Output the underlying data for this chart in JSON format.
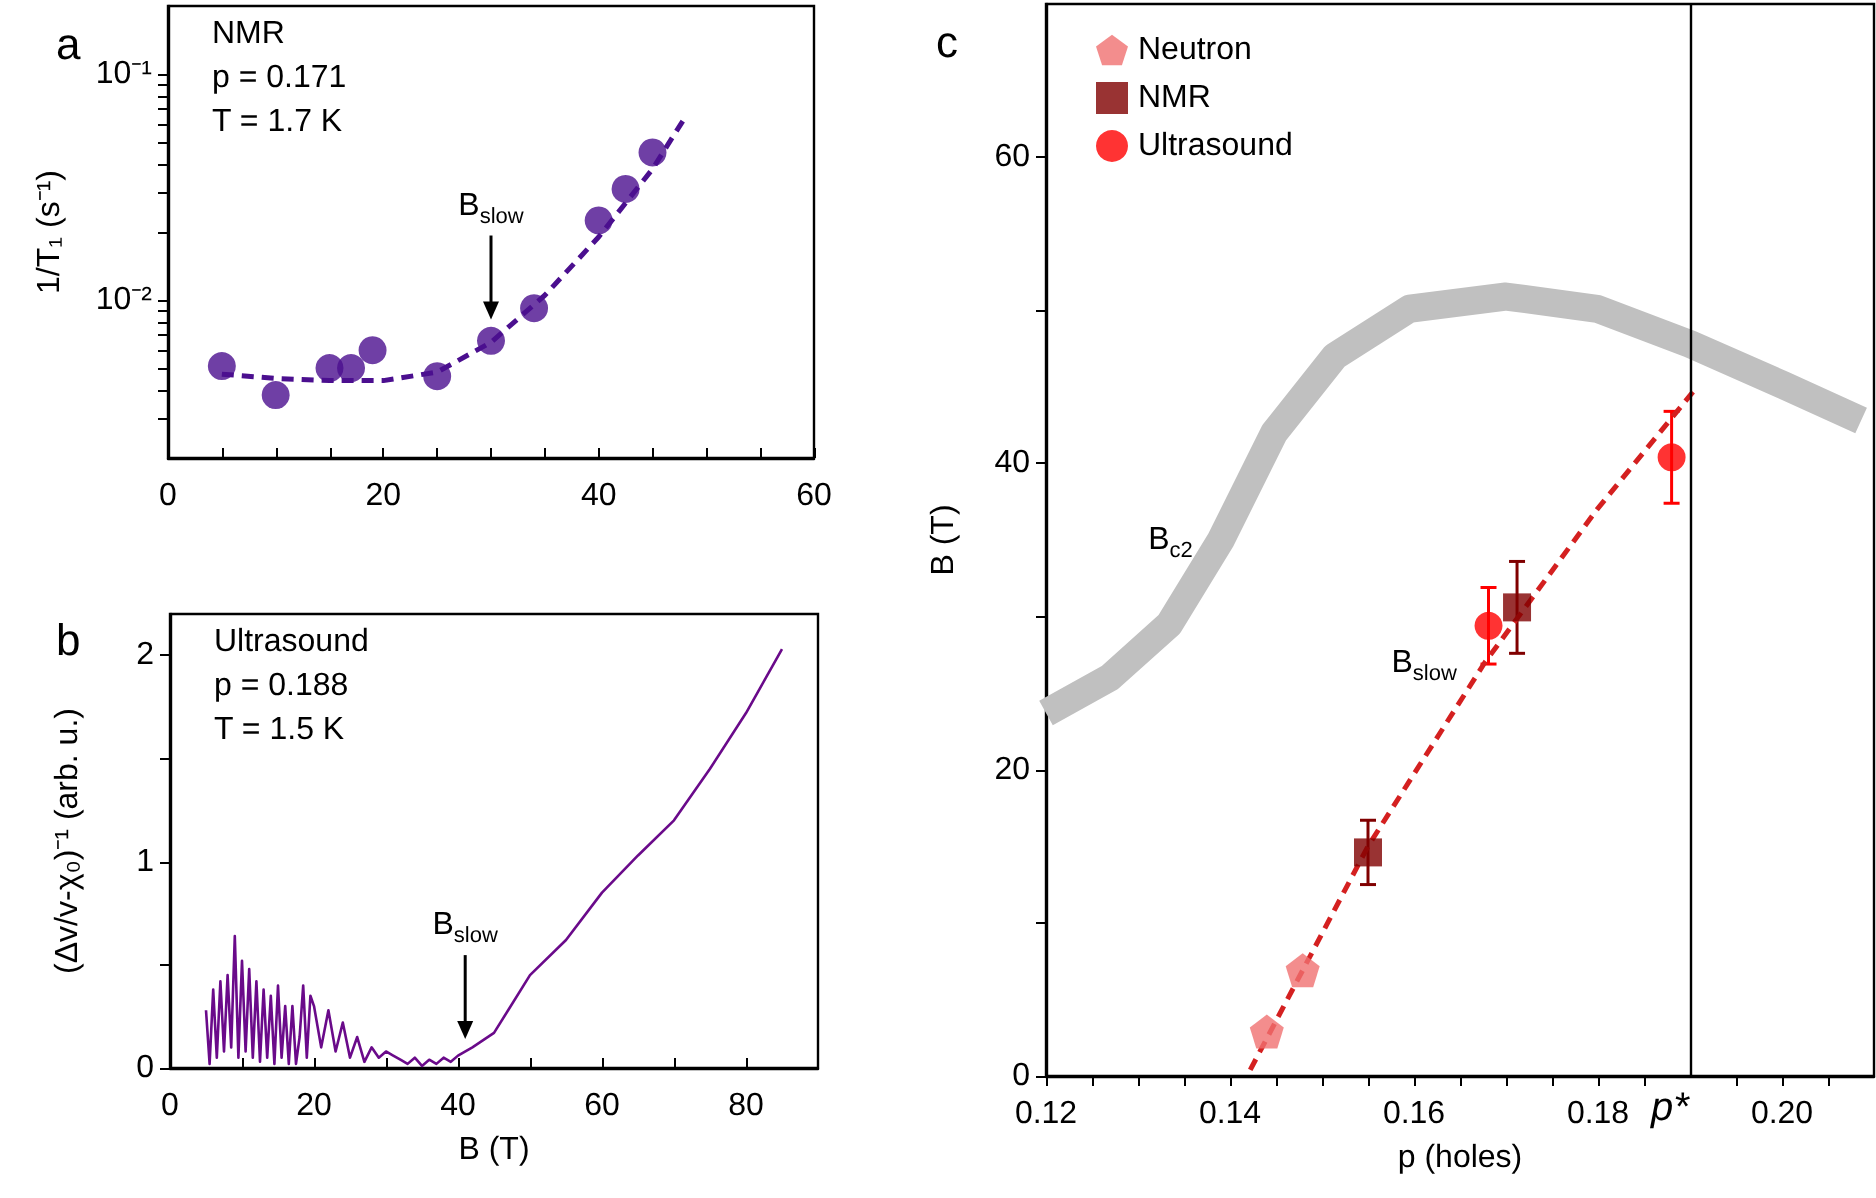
{
  "chart_data": [
    {
      "type": "scatter",
      "ylabel": "1/T₁ (s⁻¹)",
      "log": "y",
      "xlim": [
        0,
        60
      ],
      "ylim": [
        0.002,
        0.2
      ],
      "xticks": [
        0,
        {
          "value": 5,
          "label": null
        },
        {
          "value": 10,
          "label": null
        },
        {
          "value": 15,
          "label": null
        },
        20,
        {
          "value": 25,
          "label": null
        },
        {
          "value": 30,
          "label": null
        },
        {
          "value": 35,
          "label": null
        },
        40,
        {
          "value": 45,
          "label": null
        },
        {
          "value": 50,
          "label": null
        },
        {
          "value": 55,
          "label": null
        },
        60
      ],
      "yticks": [
        {
          "value": 0.003,
          "label": null
        },
        {
          "value": 0.004,
          "label": null
        },
        {
          "value": 0.005,
          "label": null
        },
        {
          "value": 0.006,
          "label": null
        },
        {
          "value": 0.007,
          "label": null
        },
        {
          "value": 0.008,
          "label": null
        },
        {
          "value": 0.009,
          "label": null
        },
        {
          "value": 0.01,
          "label": "10⁻²"
        },
        {
          "value": 0.02,
          "label": null
        },
        {
          "value": 0.03,
          "label": null
        },
        {
          "value": 0.04,
          "label": null
        },
        {
          "value": 0.05,
          "label": null
        },
        {
          "value": 0.06,
          "label": null
        },
        {
          "value": 0.07,
          "label": null
        },
        {
          "value": 0.08,
          "label": null
        },
        {
          "value": 0.09,
          "label": null
        },
        {
          "value": 0.1,
          "label": "10⁻¹"
        }
      ],
      "x": [
        5,
        10,
        15,
        17,
        19,
        25,
        30,
        34,
        40,
        42.5,
        45
      ],
      "series": [
        {
          "values": [
            0.0051,
            0.0038,
            0.005,
            0.005,
            0.006,
            0.0046,
            0.0066,
            0.0092,
            0.0225,
            0.031,
            0.045
          ],
          "color": "#4b0f8f",
          "marker": "circle"
        },
        {
          "type": "line",
          "x": [
            5,
            10,
            15,
            20,
            25,
            30,
            35,
            40,
            45,
            48
          ],
          "values": [
            0.0047,
            0.0045,
            0.0044,
            0.0044,
            0.0048,
            0.0065,
            0.0105,
            0.019,
            0.038,
            0.064
          ],
          "color": "#4b0f8f",
          "line_style": "dashed",
          "marker": "none"
        }
      ],
      "annotations": [
        "a",
        "NMR",
        "p = 0.171",
        "T = 1.7 K",
        {
          "text": "B$_{slow}$",
          "x": 30,
          "y": 0.0082
        }
      ]
    },
    {
      "type": "line",
      "xlabel": "B (T)",
      "ylabel": "(Δv/v-χ₀)⁻¹ (arb. u.)",
      "xlim": [
        0,
        90
      ],
      "ylim": [
        0,
        2.2
      ],
      "xticks": [
        0,
        {
          "value": 10,
          "label": null
        },
        20,
        {
          "value": 30,
          "label": null
        },
        40,
        {
          "value": 50,
          "label": null
        },
        60,
        {
          "value": 70,
          "label": null
        },
        80
      ],
      "yticks": [
        0,
        {
          "value": 0.5,
          "label": null
        },
        1,
        {
          "value": 1.5,
          "label": null
        },
        2
      ],
      "x": [
        5,
        5.5,
        6,
        6.5,
        7,
        7.5,
        8,
        8.5,
        9,
        9.5,
        10,
        10.5,
        11,
        11.5,
        12,
        12.5,
        13,
        13.5,
        14,
        14.5,
        15,
        15.5,
        16,
        16.5,
        17,
        17.5,
        18,
        18.5,
        19,
        19.5,
        20,
        21,
        22,
        23,
        24,
        25,
        26,
        27,
        28,
        29,
        30,
        31,
        32,
        33,
        34,
        35,
        36,
        37,
        38,
        39,
        40,
        42,
        45,
        50,
        55,
        60,
        65,
        70,
        75,
        80,
        85
      ],
      "series": [
        {
          "values": [
            0.28,
            0.02,
            0.38,
            0.05,
            0.42,
            0.08,
            0.45,
            0.1,
            0.64,
            0.05,
            0.52,
            0.08,
            0.48,
            0.05,
            0.42,
            0.03,
            0.38,
            0.05,
            0.35,
            0.02,
            0.4,
            0.05,
            0.3,
            0.02,
            0.3,
            0.02,
            0.15,
            0.4,
            0.05,
            0.35,
            0.3,
            0.1,
            0.28,
            0.08,
            0.22,
            0.05,
            0.15,
            0.03,
            0.1,
            0.05,
            0.08,
            0.06,
            0.04,
            0.02,
            0.05,
            0.01,
            0.04,
            0.02,
            0.05,
            0.03,
            0.06,
            0.1,
            0.17,
            0.45,
            0.62,
            0.85,
            1.03,
            1.2,
            1.45,
            1.72,
            2.03
          ],
          "color": "#6a0a8a"
        }
      ],
      "annotations": [
        "b",
        "Ultrasound",
        "p = 0.188",
        "T = 1.5 K",
        {
          "text": "B$_{slow}$",
          "x": 41,
          "y": 0.14
        }
      ]
    },
    {
      "type": "scatter",
      "xlabel": "p (holes)",
      "ylabel": "B (T)",
      "xlim": [
        0.12,
        0.21
      ],
      "ylim": [
        0,
        70
      ],
      "legend": "top left",
      "xticks": [
        0.12,
        {
          "value": 0.125,
          "label": null
        },
        {
          "value": 0.13,
          "label": null
        },
        {
          "value": 0.135,
          "label": null
        },
        0.14,
        {
          "value": 0.145,
          "label": null
        },
        {
          "value": 0.15,
          "label": null
        },
        {
          "value": 0.155,
          "label": null
        },
        0.16,
        {
          "value": 0.165,
          "label": null
        },
        {
          "value": 0.17,
          "label": null
        },
        {
          "value": 0.175,
          "label": null
        },
        0.18,
        {
          "value": 0.185,
          "label": null
        },
        {
          "value": 0.195,
          "label": null
        },
        {
          "value": 0.2,
          "label": "0.20"
        },
        {
          "value": 0.205,
          "label": null
        }
      ],
      "yticks": [
        0,
        {
          "value": 10,
          "label": null
        },
        20,
        {
          "value": 30,
          "label": null
        },
        40,
        {
          "value": 50,
          "label": null
        },
        60
      ],
      "series": [
        {
          "type": "line",
          "name": "B$_{c2}$",
          "x": [
            0.12,
            0.1269,
            0.1334,
            0.139,
            0.1448,
            0.1514,
            0.1595,
            0.17,
            0.1799,
            0.19,
            0.2002,
            0.2086
          ],
          "values": [
            23.7,
            26,
            29.5,
            35,
            42,
            47,
            50.1,
            50.9,
            50.1,
            47.8,
            45.1,
            42.8
          ],
          "color": "#c0c0c0"
        },
        {
          "type": "line",
          "name": "B$_{slow}$",
          "x": [
            0.1422,
            0.155,
            0.1677,
            0.1799,
            0.1905
          ],
          "values": [
            0.4,
            15,
            27,
            37,
            44.8
          ],
          "color": "#d42020",
          "line_style": "dashed",
          "marker": "none"
        },
        {
          "name": "Neutron",
          "x": [
            0.144,
            0.1479
          ],
          "values": [
            2.9,
            6.9
          ],
          "color": "#f07070"
        },
        {
          "name": "NMR",
          "x": [
            0.155,
            0.1712
          ],
          "values": [
            14.6,
            30.6
          ],
          "errors": [
            2.1,
            3
          ],
          "color": "#800000",
          "marker": "square"
        },
        {
          "name": "Ultrasound",
          "x": [
            0.1681,
            0.188
          ],
          "values": [
            29.4,
            40.4
          ],
          "errors": [
            2.5,
            3
          ],
          "color": "#ff0000",
          "marker": "circle"
        }
      ],
      "ref_lines": [
        {
          "axis": "x",
          "value": 0.19,
          "label": "p*",
          "color": "#000000"
        }
      ],
      "annotations": [
        "c"
      ]
    }
  ]
}
